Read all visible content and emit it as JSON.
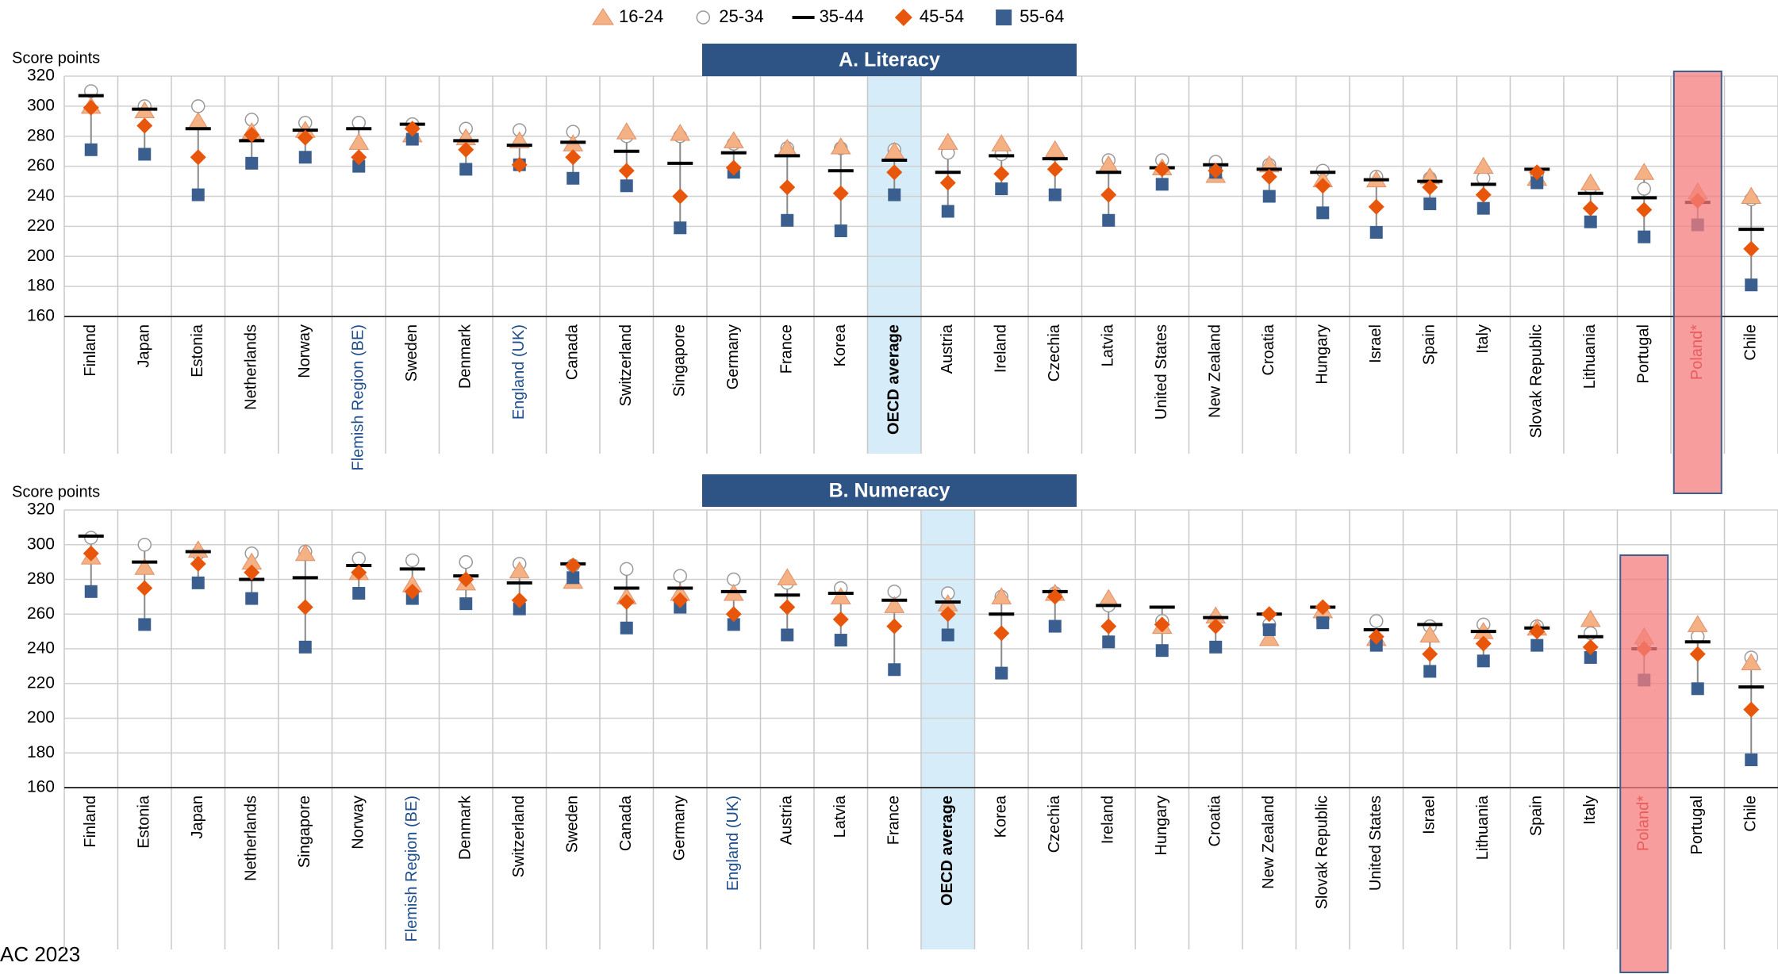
{
  "chart_data": [
    {
      "type": "dot_range",
      "title": "A. Literacy",
      "y_label": "Score points",
      "categories": [
        "Finland",
        "Japan",
        "Estonia",
        "Netherlands",
        "Norway",
        "Flemish Region (BE)",
        "Sweden",
        "Denmark",
        "England (UK)",
        "Canada",
        "Switzerland",
        "Singapore",
        "Germany",
        "France",
        "Korea",
        "OECD average",
        "Austria",
        "Ireland",
        "Czechia",
        "Latvia",
        "United States",
        "New Zealand",
        "Croatia",
        "Hungary",
        "Israel",
        "Spain",
        "Italy",
        "Slovak Republic",
        "Lithuania",
        "Portugal",
        "Poland*",
        "Chile"
      ],
      "label_colors": [
        "#000",
        "#000",
        "#000",
        "#000",
        "#000",
        "#1f4e8c",
        "#000",
        "#000",
        "#1f4e8c",
        "#000",
        "#000",
        "#000",
        "#000",
        "#000",
        "#000",
        "#000",
        "#000",
        "#000",
        "#000",
        "#000",
        "#000",
        "#000",
        "#000",
        "#000",
        "#000",
        "#000",
        "#000",
        "#000",
        "#000",
        "#000",
        "#c00000",
        "#000"
      ],
      "band_colors": [
        null,
        null,
        null,
        null,
        null,
        null,
        null,
        null,
        null,
        null,
        null,
        null,
        null,
        null,
        null,
        "#d6ecf8",
        null,
        null,
        null,
        null,
        null,
        null,
        null,
        null,
        null,
        null,
        null,
        null,
        null,
        null,
        "#f47c7c",
        null
      ],
      "series": [
        {
          "name": "16-24",
          "marker": "triangle",
          "color": "#f4b183",
          "values": [
            300,
            297,
            290,
            283,
            284,
            276,
            281,
            279,
            277,
            275,
            283,
            282,
            277,
            272,
            273,
            270,
            276,
            275,
            271,
            261,
            259,
            254,
            261,
            251,
            251,
            253,
            260,
            252,
            249,
            256,
            243,
            240
          ]
        },
        {
          "name": "25-34",
          "marker": "circle",
          "color": "#ffffff",
          "values": [
            310,
            300,
            300,
            291,
            289,
            289,
            288,
            285,
            284,
            283,
            280,
            280,
            275,
            272,
            272,
            271,
            269,
            268,
            268,
            264,
            264,
            263,
            261,
            257,
            253,
            252,
            252,
            255,
            246,
            245,
            240,
            238
          ]
        },
        {
          "name": "35-44",
          "marker": "dash",
          "color": "#000000",
          "values": [
            307,
            298,
            285,
            277,
            284,
            285,
            288,
            277,
            274,
            276,
            270,
            262,
            269,
            267,
            257,
            264,
            256,
            267,
            265,
            256,
            259,
            261,
            258,
            256,
            251,
            250,
            248,
            258,
            242,
            239,
            236,
            218
          ]
        },
        {
          "name": "45-54",
          "marker": "diamond",
          "color": "#e8560c",
          "values": [
            299,
            287,
            266,
            281,
            279,
            266,
            285,
            271,
            261,
            266,
            257,
            240,
            259,
            246,
            242,
            256,
            249,
            255,
            258,
            241,
            258,
            257,
            253,
            247,
            233,
            246,
            241,
            256,
            232,
            231,
            237,
            205
          ]
        },
        {
          "name": "55-64",
          "marker": "square",
          "color": "#3a5f8f",
          "values": [
            271,
            268,
            241,
            262,
            266,
            260,
            278,
            258,
            261,
            252,
            247,
            219,
            256,
            224,
            217,
            241,
            230,
            245,
            241,
            224,
            248,
            256,
            240,
            229,
            216,
            235,
            232,
            249,
            223,
            213,
            221,
            181
          ]
        }
      ],
      "ylim": [
        160,
        320
      ],
      "yticks": [
        160,
        180,
        200,
        220,
        240,
        260,
        280,
        300,
        320
      ],
      "grid": true
    },
    {
      "type": "dot_range",
      "title": "B. Numeracy",
      "y_label": "Score points",
      "categories": [
        "Finland",
        "Estonia",
        "Japan",
        "Netherlands",
        "Singapore",
        "Norway",
        "Flemish Region (BE)",
        "Denmark",
        "Switzerland",
        "Sweden",
        "Canada",
        "Germany",
        "England (UK)",
        "Austria",
        "Latvia",
        "France",
        "OECD average",
        "Korea",
        "Czechia",
        "Ireland",
        "Hungary",
        "Croatia",
        "New Zealand",
        "Slovak Republic",
        "United States",
        "Israel",
        "Lithuania",
        "Spain",
        "Italy",
        "Poland*",
        "Portugal",
        "Chile"
      ],
      "label_colors": [
        "#000",
        "#000",
        "#000",
        "#000",
        "#000",
        "#000",
        "#1f4e8c",
        "#000",
        "#000",
        "#000",
        "#000",
        "#000",
        "#1f4e8c",
        "#000",
        "#000",
        "#000",
        "#000",
        "#000",
        "#000",
        "#000",
        "#000",
        "#000",
        "#000",
        "#000",
        "#000",
        "#000",
        "#000",
        "#000",
        "#000",
        "#c00000",
        "#000",
        "#000"
      ],
      "band_colors": [
        null,
        null,
        null,
        null,
        null,
        null,
        null,
        null,
        null,
        null,
        null,
        null,
        null,
        null,
        null,
        null,
        "#d6ecf8",
        null,
        null,
        null,
        null,
        null,
        null,
        null,
        null,
        null,
        null,
        null,
        null,
        "#f47c7c",
        null,
        null
      ],
      "series": [
        {
          "name": "16-24",
          "marker": "triangle",
          "color": "#f4b183",
          "values": [
            293,
            287,
            297,
            290,
            295,
            284,
            277,
            278,
            285,
            279,
            270,
            272,
            272,
            281,
            270,
            265,
            266,
            270,
            272,
            269,
            253,
            259,
            246,
            262,
            246,
            248,
            250,
            252,
            257,
            247,
            254,
            232
          ]
        },
        {
          "name": "25-34",
          "marker": "circle",
          "color": "#ffffff",
          "values": [
            304,
            300,
            295,
            295,
            296,
            292,
            291,
            290,
            289,
            288,
            286,
            282,
            280,
            278,
            275,
            273,
            272,
            270,
            272,
            265,
            256,
            257,
            254,
            258,
            256,
            253,
            254,
            253,
            249,
            243,
            247,
            235
          ]
        },
        {
          "name": "35-44",
          "marker": "dash",
          "color": "#000000",
          "values": [
            305,
            290,
            296,
            280,
            281,
            288,
            286,
            282,
            278,
            289,
            275,
            275,
            273,
            271,
            272,
            268,
            267,
            260,
            273,
            265,
            264,
            258,
            260,
            264,
            251,
            254,
            250,
            252,
            247,
            240,
            244,
            218
          ]
        },
        {
          "name": "45-54",
          "marker": "diamond",
          "color": "#e8560c",
          "values": [
            295,
            275,
            289,
            284,
            264,
            284,
            273,
            280,
            268,
            288,
            267,
            268,
            260,
            264,
            257,
            253,
            260,
            249,
            270,
            253,
            254,
            253,
            260,
            264,
            247,
            237,
            243,
            250,
            241,
            240,
            237,
            205
          ]
        },
        {
          "name": "55-64",
          "marker": "square",
          "color": "#3a5f8f",
          "values": [
            273,
            254,
            278,
            269,
            241,
            272,
            269,
            266,
            263,
            281,
            252,
            264,
            254,
            248,
            245,
            228,
            248,
            226,
            253,
            244,
            239,
            241,
            251,
            255,
            242,
            227,
            233,
            242,
            235,
            222,
            217,
            176
          ]
        }
      ],
      "ylim": [
        160,
        320
      ],
      "yticks": [
        160,
        180,
        200,
        220,
        240,
        260,
        280,
        300,
        320
      ],
      "grid": true
    }
  ],
  "footer": "AC 2023"
}
